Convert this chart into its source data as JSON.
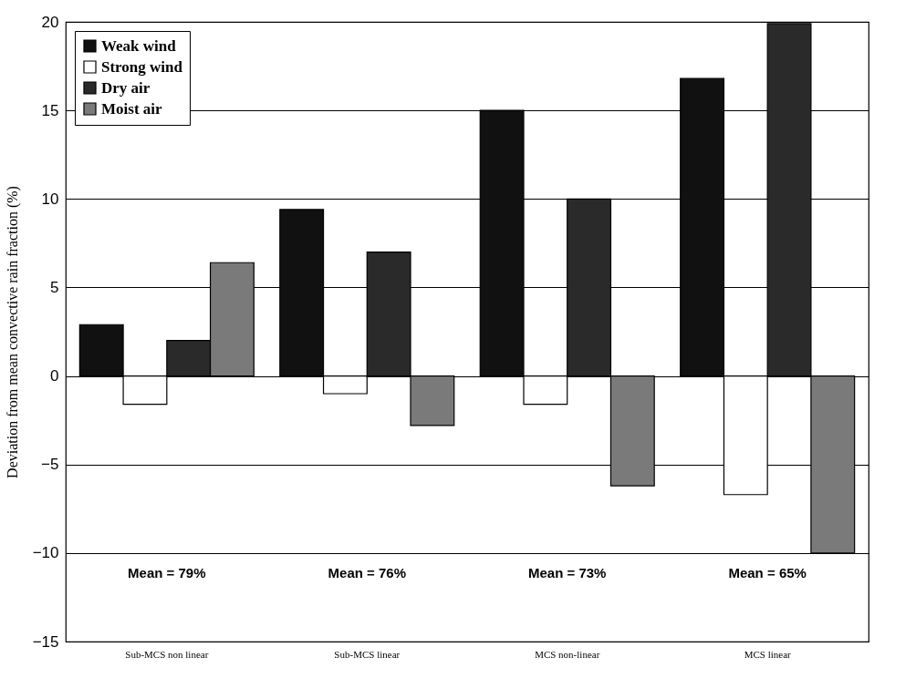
{
  "chart_data": {
    "type": "bar",
    "ylabel": "Deviation from mean convective rain fraction (%)",
    "categories": [
      "Sub-MCS non linear",
      "Sub-MCS linear",
      "MCS non-linear",
      "MCS linear"
    ],
    "series": [
      {
        "name": "Weak wind",
        "color": "#111111",
        "values": [
          2.9,
          9.4,
          15,
          16.8
        ]
      },
      {
        "name": "Strong wind",
        "color": "#ffffff",
        "values": [
          -1.6,
          -1,
          -1.6,
          -6.7
        ]
      },
      {
        "name": "Dry air",
        "color": "#2a2a2a",
        "values": [
          2,
          7,
          10,
          19.9
        ]
      },
      {
        "name": "Moist air",
        "color": "#7a7a7a",
        "values": [
          6.4,
          -2.8,
          -6.2,
          -10
        ]
      }
    ],
    "ylim": [
      -15,
      20
    ],
    "yticks": [
      -15,
      -10,
      -5,
      0,
      5,
      10,
      15,
      20
    ],
    "grid": "y",
    "legend": "top left",
    "annotations": [
      "Mean = 79%",
      "Mean = 76%",
      "Mean = 73%",
      "Mean = 65%"
    ]
  }
}
